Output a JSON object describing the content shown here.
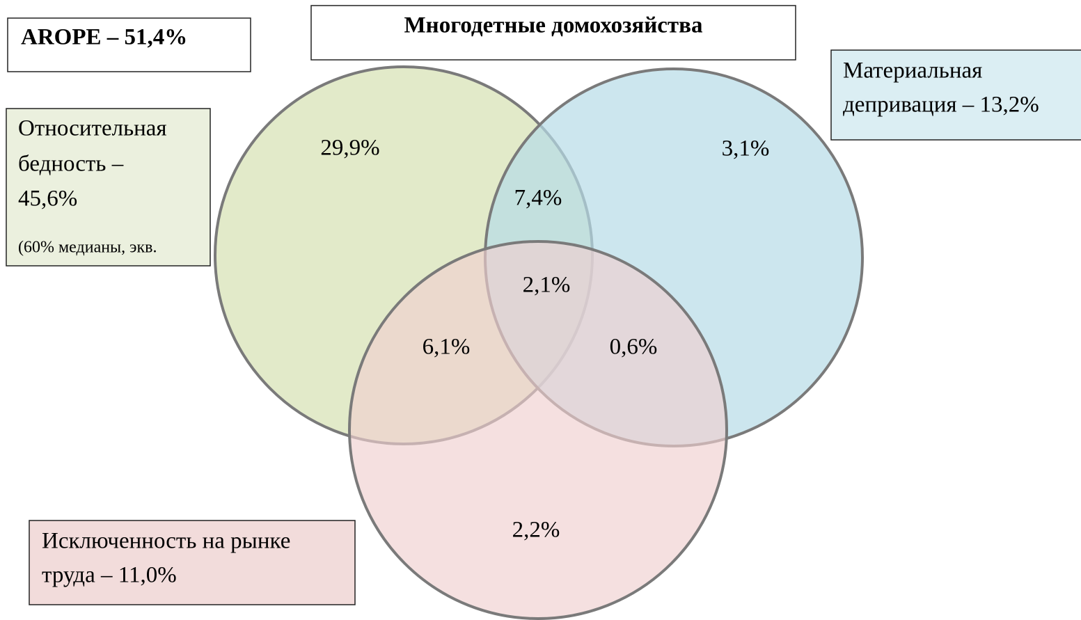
{
  "title": "Многодетные домохозяйства",
  "arope": "AROPE – 51,4%",
  "sets": [
    {
      "name": "relative-poverty",
      "lines": [
        "Относительная",
        "бедность –",
        "45,6%"
      ],
      "note": "(60% медианы, экв."
    },
    {
      "name": "material-deprivation",
      "lines": [
        "Материальная",
        "депривация – 13,2%"
      ]
    },
    {
      "name": "labor-exclusion",
      "lines": [
        "Исключенность на рынке",
        "труда – 11,0%"
      ]
    }
  ],
  "regions": {
    "poverty_only": "29,9%",
    "deprivation_only": "3,1%",
    "labor_only": "2,2%",
    "poverty_deprivation": "7,4%",
    "poverty_labor": "6,1%",
    "deprivation_labor": "0,6%",
    "all_three": "2,1%"
  }
}
